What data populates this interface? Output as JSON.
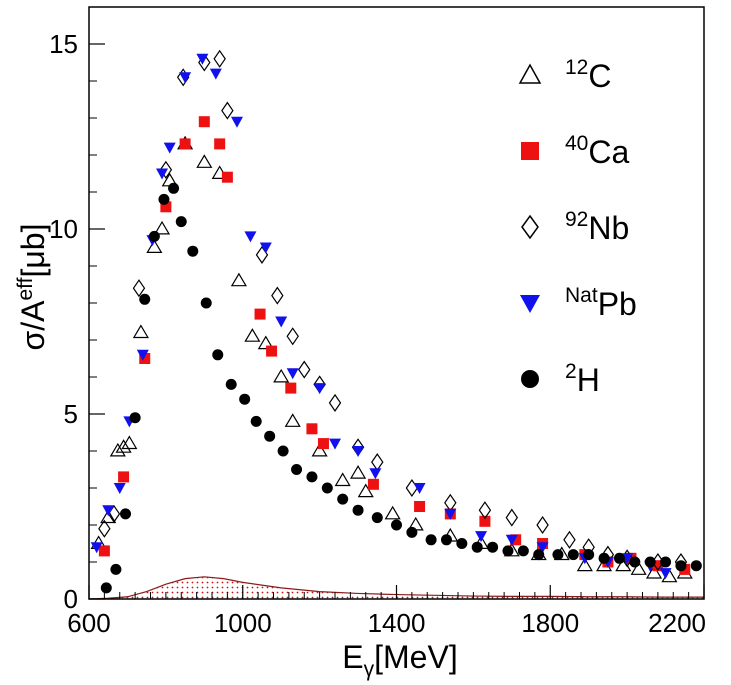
{
  "chart_data": {
    "type": "scatter",
    "x_axis": {
      "label_main": "E",
      "label_sub": "γ",
      "label_unit": "[MeV]",
      "range": [
        600,
        2200
      ],
      "ticks": [
        600,
        1000,
        1400,
        1800,
        2200
      ],
      "tick_labels": [
        "600",
        "1000",
        "1400",
        "1800",
        "2200"
      ]
    },
    "y_axis": {
      "label_main": "σ/A",
      "label_sup": "eff",
      "label_unit": "[μb]",
      "range": [
        0,
        16
      ],
      "ticks": [
        0,
        5,
        10,
        15
      ],
      "tick_labels": [
        "0",
        "5",
        "10",
        "15"
      ]
    },
    "grid": false,
    "legend_position": "right",
    "series": [
      {
        "name": "12C",
        "sup": "12",
        "base": "C",
        "marker": "triangle-open",
        "color": "#000000",
        "points": [
          [
            625,
            1.5
          ],
          [
            650,
            2.2
          ],
          [
            675,
            4.0
          ],
          [
            690,
            4.1
          ],
          [
            705,
            4.2
          ],
          [
            735,
            7.2
          ],
          [
            770,
            9.5
          ],
          [
            790,
            10.0
          ],
          [
            810,
            11.3
          ],
          [
            850,
            12.3
          ],
          [
            900,
            11.8
          ],
          [
            940,
            11.5
          ],
          [
            990,
            8.6
          ],
          [
            1025,
            7.1
          ],
          [
            1060,
            6.9
          ],
          [
            1100,
            6.0
          ],
          [
            1130,
            4.8
          ],
          [
            1200,
            4.0
          ],
          [
            1260,
            3.2
          ],
          [
            1300,
            3.4
          ],
          [
            1320,
            2.9
          ],
          [
            1390,
            2.3
          ],
          [
            1450,
            2.0
          ],
          [
            1540,
            1.7
          ],
          [
            1620,
            1.5
          ],
          [
            1700,
            1.3
          ],
          [
            1770,
            1.2
          ],
          [
            1830,
            1.2
          ],
          [
            1890,
            0.9
          ],
          [
            1940,
            0.9
          ],
          [
            1990,
            0.9
          ],
          [
            2030,
            0.8
          ],
          [
            2070,
            0.7
          ],
          [
            2110,
            0.6
          ],
          [
            2150,
            0.7
          ]
        ]
      },
      {
        "name": "40Ca",
        "sup": "40",
        "base": "Ca",
        "marker": "square",
        "color": "#ee1111",
        "points": [
          [
            640,
            1.3
          ],
          [
            690,
            3.3
          ],
          [
            745,
            6.5
          ],
          [
            800,
            10.6
          ],
          [
            850,
            12.3
          ],
          [
            900,
            12.9
          ],
          [
            940,
            12.3
          ],
          [
            960,
            11.4
          ],
          [
            1045,
            7.7
          ],
          [
            1075,
            6.7
          ],
          [
            1125,
            5.7
          ],
          [
            1180,
            4.6
          ],
          [
            1210,
            4.2
          ],
          [
            1340,
            3.1
          ],
          [
            1460,
            2.5
          ],
          [
            1540,
            2.3
          ],
          [
            1630,
            2.1
          ],
          [
            1710,
            1.6
          ],
          [
            1780,
            1.5
          ],
          [
            1890,
            1.2
          ],
          [
            1950,
            1.0
          ],
          [
            2010,
            1.1
          ],
          [
            2080,
            0.9
          ],
          [
            2150,
            0.8
          ]
        ]
      },
      {
        "name": "92Nb",
        "sup": "92",
        "base": "Nb",
        "marker": "diamond-open",
        "color": "#000000",
        "points": [
          [
            640,
            1.9
          ],
          [
            665,
            2.3
          ],
          [
            730,
            8.4
          ],
          [
            800,
            11.6
          ],
          [
            845,
            14.1
          ],
          [
            900,
            14.5
          ],
          [
            940,
            14.6
          ],
          [
            960,
            13.2
          ],
          [
            1050,
            9.3
          ],
          [
            1090,
            8.2
          ],
          [
            1130,
            7.1
          ],
          [
            1160,
            6.2
          ],
          [
            1200,
            5.8
          ],
          [
            1240,
            5.3
          ],
          [
            1300,
            4.1
          ],
          [
            1350,
            3.7
          ],
          [
            1440,
            3.0
          ],
          [
            1540,
            2.6
          ],
          [
            1630,
            2.4
          ],
          [
            1700,
            2.2
          ],
          [
            1780,
            2.0
          ],
          [
            1850,
            1.6
          ],
          [
            1900,
            1.4
          ],
          [
            1950,
            1.2
          ],
          [
            2000,
            1.1
          ],
          [
            2080,
            1.0
          ],
          [
            2140,
            1.0
          ]
        ]
      },
      {
        "name": "NatPb",
        "sup": "Nat",
        "base": "Pb",
        "marker": "triangle-down",
        "color": "#1111ee",
        "points": [
          [
            620,
            1.4
          ],
          [
            650,
            2.4
          ],
          [
            680,
            3.0
          ],
          [
            705,
            4.8
          ],
          [
            740,
            6.6
          ],
          [
            765,
            9.7
          ],
          [
            790,
            11.5
          ],
          [
            810,
            12.2
          ],
          [
            850,
            14.1
          ],
          [
            895,
            14.6
          ],
          [
            930,
            14.2
          ],
          [
            985,
            12.9
          ],
          [
            1020,
            9.8
          ],
          [
            1060,
            9.5
          ],
          [
            1100,
            7.5
          ],
          [
            1130,
            6.1
          ],
          [
            1200,
            5.7
          ],
          [
            1240,
            4.2
          ],
          [
            1300,
            4.0
          ],
          [
            1345,
            3.4
          ],
          [
            1460,
            3.0
          ],
          [
            1540,
            2.3
          ],
          [
            1620,
            1.7
          ],
          [
            1700,
            1.6
          ],
          [
            1780,
            1.4
          ],
          [
            1890,
            1.1
          ],
          [
            1950,
            1.0
          ],
          [
            2000,
            1.1
          ],
          [
            2060,
            0.9
          ],
          [
            2100,
            0.7
          ]
        ]
      },
      {
        "name": "2H",
        "sup": "2",
        "base": "H",
        "marker": "circle",
        "color": "#000000",
        "points": [
          [
            645,
            0.3
          ],
          [
            670,
            0.8
          ],
          [
            695,
            2.3
          ],
          [
            720,
            4.9
          ],
          [
            745,
            8.1
          ],
          [
            770,
            9.8
          ],
          [
            795,
            10.8
          ],
          [
            820,
            11.1
          ],
          [
            840,
            10.2
          ],
          [
            870,
            9.4
          ],
          [
            905,
            8.0
          ],
          [
            935,
            6.6
          ],
          [
            970,
            5.8
          ],
          [
            1005,
            5.4
          ],
          [
            1035,
            4.8
          ],
          [
            1070,
            4.4
          ],
          [
            1105,
            4.0
          ],
          [
            1140,
            3.5
          ],
          [
            1180,
            3.3
          ],
          [
            1220,
            3.0
          ],
          [
            1260,
            2.7
          ],
          [
            1300,
            2.4
          ],
          [
            1350,
            2.2
          ],
          [
            1400,
            2.0
          ],
          [
            1440,
            1.8
          ],
          [
            1490,
            1.6
          ],
          [
            1530,
            1.6
          ],
          [
            1570,
            1.5
          ],
          [
            1610,
            1.4
          ],
          [
            1650,
            1.4
          ],
          [
            1690,
            1.3
          ],
          [
            1730,
            1.3
          ],
          [
            1770,
            1.2
          ],
          [
            1820,
            1.2
          ],
          [
            1860,
            1.2
          ],
          [
            1900,
            1.2
          ],
          [
            1940,
            1.1
          ],
          [
            1980,
            1.1
          ],
          [
            2020,
            1.0
          ],
          [
            2060,
            1.0
          ],
          [
            2100,
            1.0
          ],
          [
            2140,
            0.9
          ],
          [
            2180,
            0.9
          ]
        ]
      }
    ],
    "band": {
      "style": "hatched-red",
      "color": "#cc1111",
      "points": [
        [
          600,
          0.0
        ],
        [
          650,
          0.02
        ],
        [
          700,
          0.06
        ],
        [
          750,
          0.2
        ],
        [
          800,
          0.4
        ],
        [
          850,
          0.55
        ],
        [
          900,
          0.6
        ],
        [
          950,
          0.55
        ],
        [
          1000,
          0.45
        ],
        [
          1100,
          0.3
        ],
        [
          1200,
          0.2
        ],
        [
          1300,
          0.15
        ],
        [
          1400,
          0.12
        ],
        [
          1500,
          0.1
        ],
        [
          1600,
          0.08
        ],
        [
          1700,
          0.07
        ],
        [
          1800,
          0.07
        ],
        [
          1900,
          0.06
        ],
        [
          2000,
          0.06
        ],
        [
          2100,
          0.05
        ],
        [
          2200,
          0.05
        ]
      ]
    }
  }
}
